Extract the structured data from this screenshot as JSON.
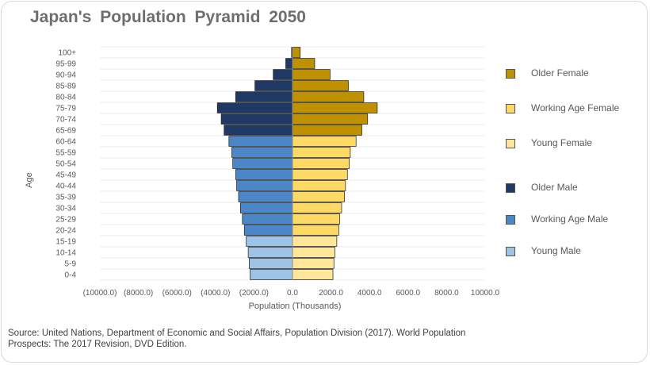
{
  "chart_data": {
    "type": "bar",
    "orientation": "horizontal",
    "title": "Japan's  Population  Pyramid  2050",
    "xlabel": "Population (Thousands)",
    "ylabel": "Age",
    "xlim": [
      -10000,
      10000
    ],
    "x_ticks": [
      "(10000.0)",
      "(8000.0)",
      "(6000.0)",
      "(4000.0)",
      "(2000.0)",
      "0.0",
      "2000.0",
      "4000.0",
      "6000.0",
      "8000.0",
      "10000.0"
    ],
    "x_tick_values": [
      -10000,
      -8000,
      -6000,
      -4000,
      -2000,
      0,
      2000,
      4000,
      6000,
      8000,
      10000
    ],
    "grid": true,
    "legend_position": "right",
    "categories": [
      "0-4",
      "5-9",
      "10-14",
      "15-19",
      "20-24",
      "25-29",
      "30-34",
      "35-39",
      "40-44",
      "45-49",
      "50-54",
      "55-59",
      "60-64",
      "65-69",
      "70-74",
      "75-79",
      "80-84",
      "85-89",
      "90-94",
      "95-99",
      "100+"
    ],
    "male_group_by_category": [
      "Young Male",
      "Young Male",
      "Young Male",
      "Young Male",
      "Working Age Male",
      "Working Age Male",
      "Working Age Male",
      "Working Age Male",
      "Working Age Male",
      "Working Age Male",
      "Working Age Male",
      "Working Age Male",
      "Working Age Male",
      "Older Male",
      "Older Male",
      "Older Male",
      "Older Male",
      "Older Male",
      "Older Male",
      "Older Male",
      "Older Male"
    ],
    "female_group_by_category": [
      "Young Female",
      "Young Female",
      "Young Female",
      "Young Female",
      "Working Age Female",
      "Working Age Female",
      "Working Age Female",
      "Working Age Female",
      "Working Age Female",
      "Working Age Female",
      "Working Age Female",
      "Working Age Female",
      "Working Age Female",
      "Older Female",
      "Older Female",
      "Older Female",
      "Older Female",
      "Older Female",
      "Older Female",
      "Older Female",
      "Older Female"
    ],
    "series": [
      {
        "name": "Male",
        "values": [
          -2200,
          -2250,
          -2300,
          -2400,
          -2500,
          -2600,
          -2700,
          -2800,
          -2900,
          -2950,
          -3100,
          -3150,
          -3300,
          -3550,
          -3700,
          -3900,
          -2950,
          -1950,
          -1000,
          -350,
          -50
        ]
      },
      {
        "name": "Female",
        "values": [
          2100,
          2150,
          2200,
          2300,
          2400,
          2450,
          2550,
          2700,
          2750,
          2850,
          2950,
          3000,
          3300,
          3600,
          3900,
          4400,
          3700,
          2900,
          1950,
          1150,
          400
        ]
      }
    ],
    "legend": [
      {
        "label": "Older Female",
        "color": "#bf9000"
      },
      {
        "label": "Working Age Female",
        "color": "#ffd966"
      },
      {
        "label": "Young Female",
        "color": "#ffe699"
      },
      {
        "label": "Older Male",
        "color": "#1f3864"
      },
      {
        "label": "Working Age Male",
        "color": "#4a86c8"
      },
      {
        "label": "Young Male",
        "color": "#9dc3e6"
      }
    ]
  },
  "source": "Source:  United Nations, Department of Economic and Social Affairs, Population Division (2017). World Population Prospects: The 2017 Revision, DVD Edition."
}
